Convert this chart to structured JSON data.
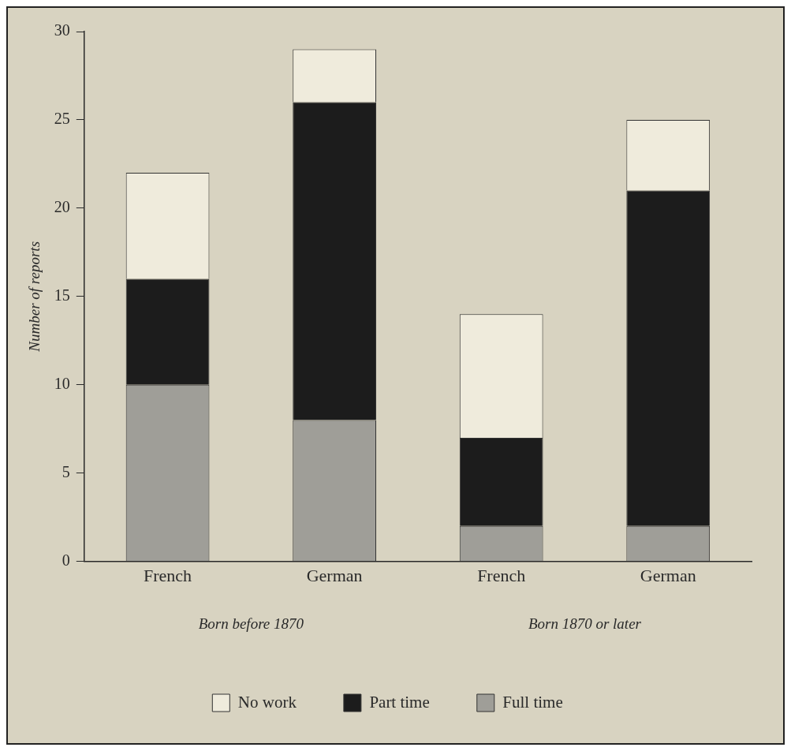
{
  "chart_data": {
    "type": "bar",
    "stacked": true,
    "ylabel": "Number of reports",
    "categories": [
      "French",
      "German",
      "French",
      "German"
    ],
    "series": [
      {
        "name": "Full time",
        "color": "#9f9e98",
        "values": [
          10,
          8,
          2,
          2
        ]
      },
      {
        "name": "Part time",
        "color": "#1c1c1c",
        "values": [
          6,
          18,
          5,
          19
        ]
      },
      {
        "name": "No work",
        "color": "#efebdc",
        "values": [
          6,
          3,
          7,
          4
        ]
      }
    ],
    "ylim": [
      0,
      30
    ],
    "yticks": [
      0,
      5,
      10,
      15,
      20,
      25,
      30
    ],
    "grid": false,
    "legend": "bottom",
    "annotations": [
      "Born before 1870",
      "Born 1870 or later"
    ]
  }
}
